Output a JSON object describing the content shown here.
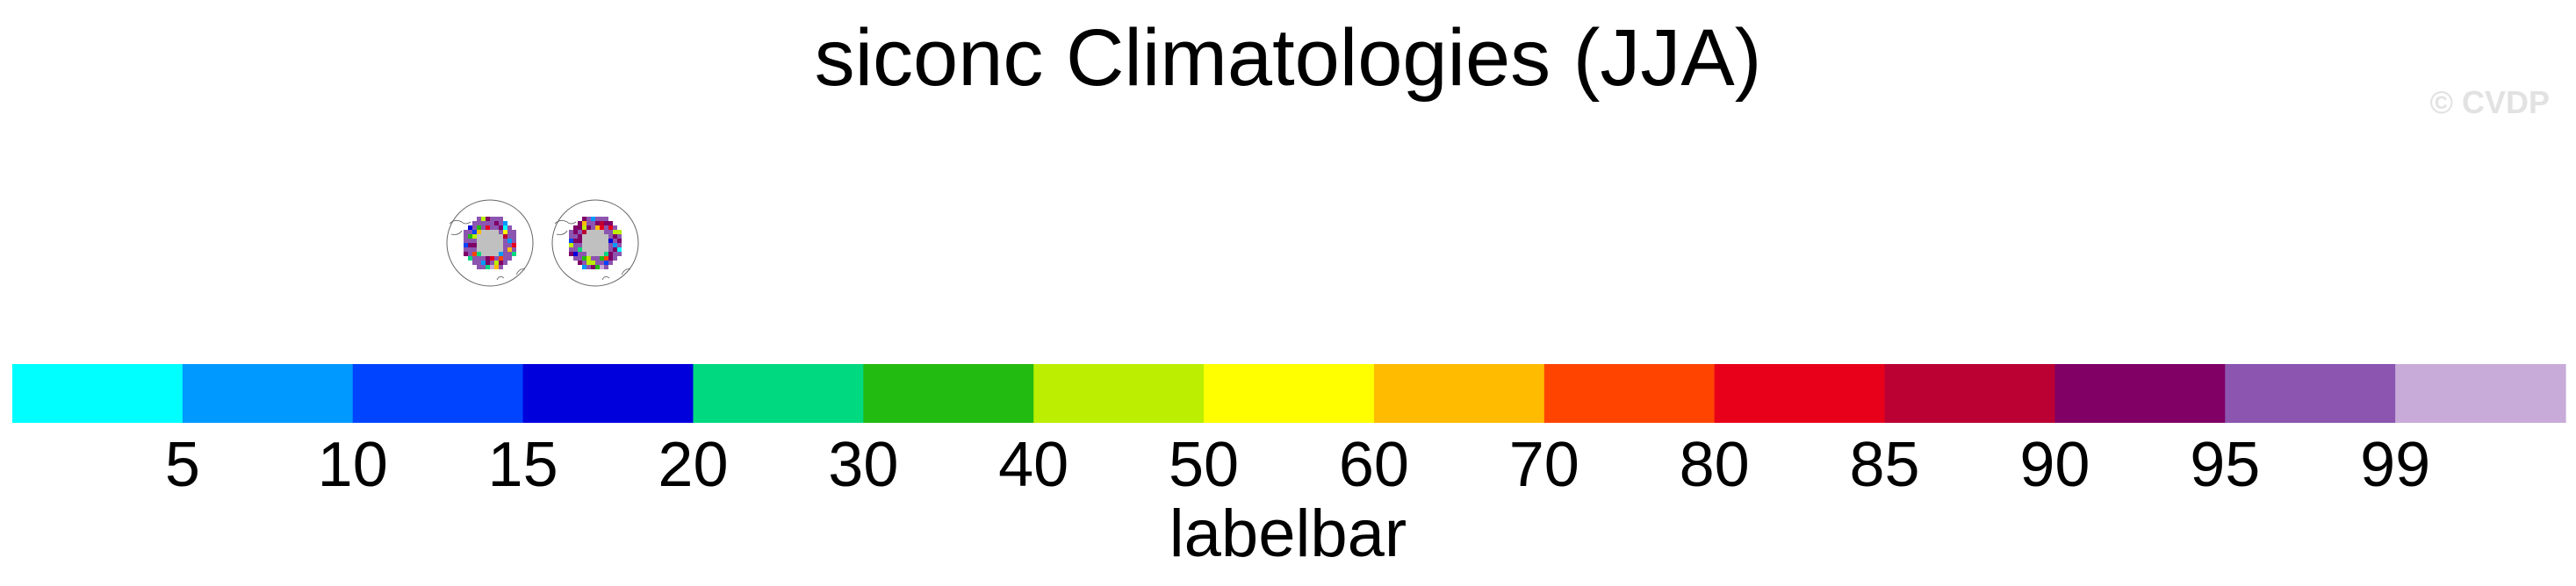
{
  "title": "siconc Climatologies (JJA)",
  "watermark": "© CVDP",
  "chart_data": {
    "type": "heatmap",
    "title": "siconc Climatologies (JJA)",
    "projection": "polar stereographic",
    "panels": [
      {
        "title": ""
      },
      {
        "title": ""
      }
    ],
    "colorbar": {
      "label": "labelbar",
      "orientation": "horizontal",
      "levels": [
        5,
        10,
        15,
        20,
        30,
        40,
        50,
        60,
        70,
        80,
        85,
        90,
        95,
        99
      ],
      "colors": [
        "#00ffff",
        "#0099ff",
        "#0044ff",
        "#0000dd",
        "#00d980",
        "#22bb11",
        "#bbee00",
        "#ffff00",
        "#ffbb00",
        "#ff4400",
        "#e8001a",
        "#bb0033",
        "#800066",
        "#8c55b0",
        "#c8abd8"
      ]
    }
  }
}
